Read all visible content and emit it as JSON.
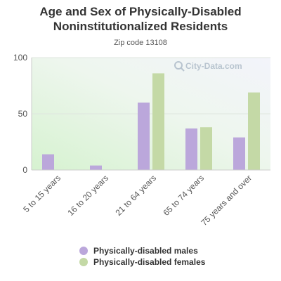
{
  "chart_data": {
    "type": "bar",
    "title": "Age and Sex of Physically-Disabled Noninstitutionalized Residents",
    "subtitle": "Zip code 13108",
    "categories": [
      "5 to 15 years",
      "16 to 20 years",
      "21 to 64 years",
      "65 to 74 years",
      "75 years and over"
    ],
    "series": [
      {
        "name": "Physically-disabled males",
        "color": "#bba7db",
        "values": [
          14,
          4,
          60,
          37,
          29
        ]
      },
      {
        "name": "Physically-disabled females",
        "color": "#c4d9a6",
        "values": [
          0,
          0,
          86,
          38,
          69
        ]
      }
    ],
    "ylim": [
      0,
      100
    ],
    "yticks": [
      0,
      50,
      100
    ],
    "legend_position": "bottom",
    "grid": true
  },
  "watermark": "City-Data.com"
}
